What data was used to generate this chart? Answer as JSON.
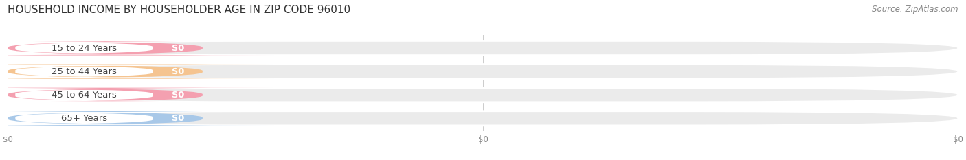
{
  "title": "HOUSEHOLD INCOME BY HOUSEHOLDER AGE IN ZIP CODE 96010",
  "source": "Source: ZipAtlas.com",
  "categories": [
    "15 to 24 Years",
    "25 to 44 Years",
    "45 to 64 Years",
    "65+ Years"
  ],
  "values": [
    0,
    0,
    0,
    0
  ],
  "bar_colors": [
    "#f4a0b0",
    "#f5c490",
    "#f4a0b0",
    "#a8c8e8"
  ],
  "bar_bg_color": "#ebebeb",
  "background_color": "#ffffff",
  "title_fontsize": 11,
  "tick_fontsize": 8.5,
  "label_fontsize": 9.5,
  "value_fontsize": 9.5,
  "source_fontsize": 8.5
}
